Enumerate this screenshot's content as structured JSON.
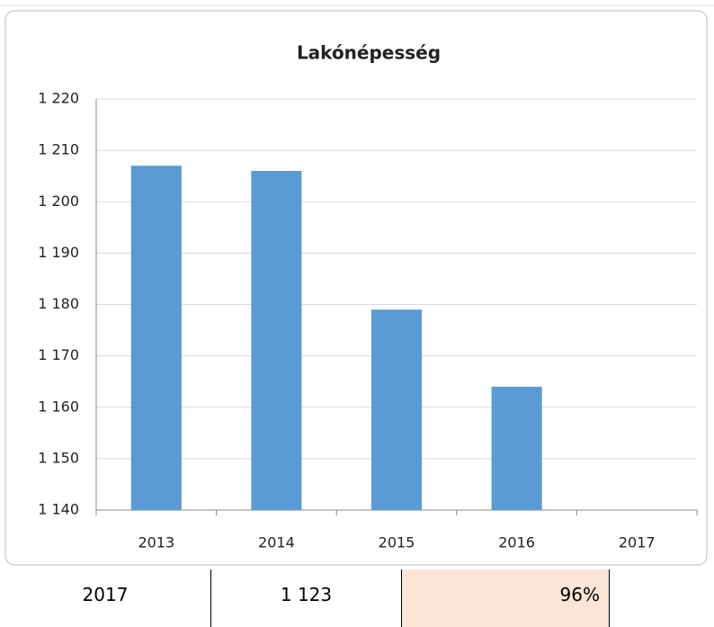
{
  "chart_data": {
    "type": "bar",
    "title": "Lakónépesség",
    "categories": [
      "2013",
      "2014",
      "2015",
      "2016",
      "2017"
    ],
    "values": [
      1207,
      1206,
      1179,
      1164,
      null
    ],
    "color": "#5b9bd5",
    "ylim": [
      1140,
      1220
    ],
    "yticks": [
      {
        "value": 1140,
        "label": "1 140"
      },
      {
        "value": 1150,
        "label": "1 150"
      },
      {
        "value": 1160,
        "label": "1 160"
      },
      {
        "value": 1170,
        "label": "1 170"
      },
      {
        "value": 1180,
        "label": "1 180"
      },
      {
        "value": 1190,
        "label": "1 190"
      },
      {
        "value": 1200,
        "label": "1 200"
      },
      {
        "value": 1210,
        "label": "1 210"
      },
      {
        "value": 1220,
        "label": "1 220"
      }
    ],
    "grid": true
  },
  "table": {
    "rows": [
      [
        "2017",
        "1 123",
        "96%"
      ]
    ]
  }
}
